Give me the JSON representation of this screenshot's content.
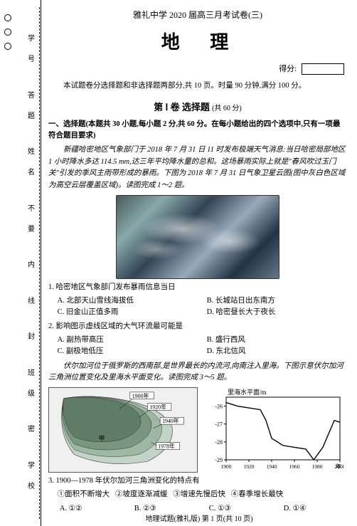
{
  "sidebar": {
    "labels": [
      "学 号",
      "答 题",
      "姓 名",
      "不 要",
      "内",
      "线",
      "封",
      "班 级",
      "密",
      "学 校"
    ]
  },
  "header": {
    "top": "雅礼中学 2020 届高三月考试卷(三)",
    "main": "地 理",
    "score_label": "得分:"
  },
  "intro": "本试题卷分选择题和非选择题两部分,共 10 页。时量 90 分钟,满分 100 分。",
  "section1": {
    "title_main": "第 Ⅰ 卷 选择题",
    "title_sub": "(共 60 分)"
  },
  "mcq_head": "一、选择题(本题共 30 小题,每小题 2 分,共 60 分。在每小题给出的四个选项中,只有一项最符合题目要求)",
  "passage1": "新疆哈密地区气象部门于 2018 年 7 月 31 日 11 时发布极端天气消息:当日哈密局部地区 1 小时降水多达 114.5 mm,达三年平均降水量的总和。这场暴雨实际上就是\"春风吹过玉门关\"引发的季风主雨带形成的暴雨。下图为 2018 年 7 月 31 日气象卫星云图(图中灰白色区域为高空云层覆盖区域)。读图完成 1～2 题。",
  "q1": {
    "stem": "1. 哈密地区气象部门发布暴雨信息当日",
    "A": "A. 北部天山雪线海拔低",
    "B": "B. 长城站日出东南方",
    "C": "C. 旧金山正值多雨",
    "D": "D. 哈密昼长大于夜长"
  },
  "q2": {
    "stem": "2. 影响图示虚线区域的大气环流最可能是",
    "A": "A. 副热带高压",
    "B": "B. 盛行西风",
    "C": "C. 副极地低压",
    "D": "D. 东北信风"
  },
  "passage2": "伏尔加河位于俄罗斯的西南部,是世界最长的内流河,向南注入里海。下图示意伏尔加河三角洲位置变化及里海水平面变化。读图完成 3～5 题。",
  "map": {
    "labels": [
      "1900年",
      "1920年",
      "1940年",
      "1978年",
      "甲"
    ],
    "shades": [
      "#5f7d66",
      "#79967f",
      "#9fb8a5",
      "#c3d3c7"
    ]
  },
  "chart": {
    "type": "line",
    "ylabel": "里海水平面/m",
    "xlim": [
      1900,
      2000
    ],
    "ylim": [
      -29,
      -25.5
    ],
    "ytick": [
      -26,
      -27,
      -28,
      -29
    ],
    "xtick": [
      1900,
      1920,
      1940,
      1960,
      1980,
      2000
    ],
    "xtick_label_suffix": "年",
    "line_color": "#000000",
    "background_color": "#ffffff",
    "grid_color": "#000000",
    "points": [
      [
        1900,
        -25.8
      ],
      [
        1910,
        -26.0
      ],
      [
        1920,
        -26.1
      ],
      [
        1930,
        -26.2
      ],
      [
        1935,
        -26.8
      ],
      [
        1940,
        -27.8
      ],
      [
        1950,
        -28.2
      ],
      [
        1960,
        -28.3
      ],
      [
        1970,
        -28.4
      ],
      [
        1977,
        -29.0
      ],
      [
        1985,
        -28.3
      ],
      [
        1995,
        -26.8
      ],
      [
        2000,
        -26.9
      ]
    ]
  },
  "q3": {
    "stem": "3. 1900—1978 年伏尔加河三角洲变化的特点有",
    "s1": "①面积不断增大",
    "s2": "②坡度逐渐减缓",
    "s3": "③增速先慢后快",
    "s4": "④春季增长最快",
    "A": "A. ①②",
    "B": "B. ②③",
    "C": "C. ①③",
    "D": "D. ①④"
  },
  "footer": "地理试题(雅礼版) 第 1 页(共 10 页)"
}
